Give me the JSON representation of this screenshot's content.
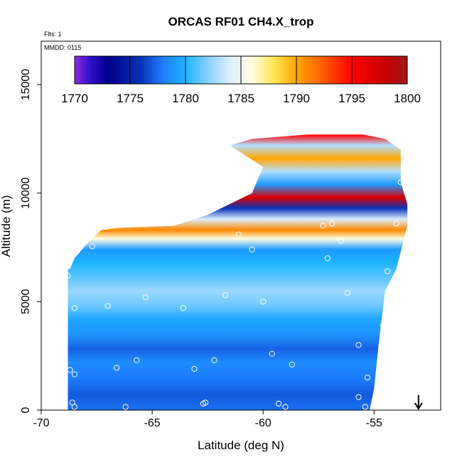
{
  "chart_data": {
    "type": "heatmap",
    "title": "ORCAS RF01 CH4.X_trop",
    "xlabel": "Latitude (deg N)",
    "ylabel": "Altitude (m)",
    "xlim": [
      -70,
      -52
    ],
    "ylim": [
      0,
      17000
    ],
    "xticks": [
      -70,
      -65,
      -60,
      -55
    ],
    "yticks": [
      0,
      5000,
      10000,
      15000
    ],
    "notes": [
      "Flts: 1",
      "MMDD: 0115"
    ],
    "colorbar": {
      "min": 1770,
      "max": 1800,
      "ticks": [
        1770,
        1775,
        1780,
        1785,
        1790,
        1795,
        1800
      ],
      "stops": [
        {
          "v": 1770,
          "color": "#8c2be2"
        },
        {
          "v": 1771.5,
          "color": "#2a0fc8"
        },
        {
          "v": 1773,
          "color": "#00008b"
        },
        {
          "v": 1776,
          "color": "#0a33b8"
        },
        {
          "v": 1778,
          "color": "#1e7fff"
        },
        {
          "v": 1780,
          "color": "#1cb4ff"
        },
        {
          "v": 1782,
          "color": "#87d0ff"
        },
        {
          "v": 1784,
          "color": "#dcefff"
        },
        {
          "v": 1786,
          "color": "#fffde0"
        },
        {
          "v": 1788,
          "color": "#ffe650"
        },
        {
          "v": 1790,
          "color": "#ffa500"
        },
        {
          "v": 1792,
          "color": "#ff6a00"
        },
        {
          "v": 1795,
          "color": "#ff0000"
        },
        {
          "v": 1798,
          "color": "#c80000"
        },
        {
          "v": 1800,
          "color": "#a01818"
        }
      ]
    },
    "curtain": {
      "upper_boundary": [
        {
          "x": -68.7,
          "y": 6500
        },
        {
          "x": -68.5,
          "y": 7000
        },
        {
          "x": -68.0,
          "y": 7600
        },
        {
          "x": -67.3,
          "y": 8300
        },
        {
          "x": -66.5,
          "y": 8400
        },
        {
          "x": -64.0,
          "y": 8500
        },
        {
          "x": -62.5,
          "y": 9000
        },
        {
          "x": -60.5,
          "y": 10000
        },
        {
          "x": -60.0,
          "y": 11200
        },
        {
          "x": -61.5,
          "y": 12200
        },
        {
          "x": -60.5,
          "y": 12500
        },
        {
          "x": -58.0,
          "y": 12700
        },
        {
          "x": -55.5,
          "y": 12700
        },
        {
          "x": -54.5,
          "y": 12500
        },
        {
          "x": -53.8,
          "y": 12000
        },
        {
          "x": -53.8,
          "y": 10500
        },
        {
          "x": -53.5,
          "y": 9500
        },
        {
          "x": -53.5,
          "y": 8500
        },
        {
          "x": -54.0,
          "y": 6500
        },
        {
          "x": -54.5,
          "y": 5500
        },
        {
          "x": -54.8,
          "y": 3000
        },
        {
          "x": -55.0,
          "y": 1000
        },
        {
          "x": -55.2,
          "y": 0
        }
      ],
      "bottom": 0,
      "left_lat": -68.8,
      "bands": [
        {
          "alt": 200,
          "value": 1777.5
        },
        {
          "alt": 700,
          "value": 1777
        },
        {
          "alt": 1300,
          "value": 1777.8
        },
        {
          "alt": 2200,
          "value": 1778.5
        },
        {
          "alt": 2800,
          "value": 1777.2
        },
        {
          "alt": 3500,
          "value": 1778.8
        },
        {
          "alt": 4200,
          "value": 1779.5
        },
        {
          "alt": 4800,
          "value": 1781.5
        },
        {
          "alt": 5500,
          "value": 1782.5
        },
        {
          "alt": 6200,
          "value": 1781
        },
        {
          "alt": 6800,
          "value": 1780
        },
        {
          "alt": 7400,
          "value": 1779
        },
        {
          "alt": 7900,
          "value": 1786
        },
        {
          "alt": 8300,
          "value": 1791
        },
        {
          "alt": 8800,
          "value": 1784
        },
        {
          "alt": 9300,
          "value": 1776
        },
        {
          "alt": 9800,
          "value": 1797
        },
        {
          "alt": 10400,
          "value": 1779
        },
        {
          "alt": 11000,
          "value": 1783
        },
        {
          "alt": 11600,
          "value": 1790
        },
        {
          "alt": 12200,
          "value": 1783
        },
        {
          "alt": 12700,
          "value": 1795
        }
      ]
    },
    "samples": [
      {
        "x": -68.8,
        "y": 6200
      },
      {
        "x": -68.4,
        "y": 7300
      },
      {
        "x": -67.7,
        "y": 7550
      },
      {
        "x": -68.5,
        "y": 4700
      },
      {
        "x": -67.0,
        "y": 4800
      },
      {
        "x": -65.3,
        "y": 5200
      },
      {
        "x": -63.6,
        "y": 4700
      },
      {
        "x": -61.7,
        "y": 5300
      },
      {
        "x": -60.0,
        "y": 5000
      },
      {
        "x": -60.5,
        "y": 7400
      },
      {
        "x": -61.1,
        "y": 8100
      },
      {
        "x": -57.3,
        "y": 8500
      },
      {
        "x": -56.9,
        "y": 8600
      },
      {
        "x": -56.5,
        "y": 7800
      },
      {
        "x": -57.1,
        "y": 7000
      },
      {
        "x": -56.2,
        "y": 5400
      },
      {
        "x": -55.7,
        "y": 3000
      },
      {
        "x": -54.6,
        "y": 3900
      },
      {
        "x": -54.4,
        "y": 6400
      },
      {
        "x": -54.0,
        "y": 8600
      },
      {
        "x": -53.8,
        "y": 10500
      },
      {
        "x": -59.6,
        "y": 2600
      },
      {
        "x": -58.7,
        "y": 2100
      },
      {
        "x": -62.2,
        "y": 2300
      },
      {
        "x": -63.1,
        "y": 1900
      },
      {
        "x": -65.7,
        "y": 2300
      },
      {
        "x": -66.6,
        "y": 1950
      },
      {
        "x": -68.7,
        "y": 1850
      },
      {
        "x": -68.5,
        "y": 1650
      },
      {
        "x": -55.3,
        "y": 1500
      },
      {
        "x": -55.7,
        "y": 600
      },
      {
        "x": -62.6,
        "y": 350
      },
      {
        "x": -59.3,
        "y": 300
      },
      {
        "x": -59.0,
        "y": 150
      },
      {
        "x": -66.2,
        "y": 150
      },
      {
        "x": -68.6,
        "y": 350
      },
      {
        "x": -68.5,
        "y": 150
      },
      {
        "x": -55.4,
        "y": 150
      },
      {
        "x": -62.7,
        "y": 300
      }
    ],
    "arrow_lat": -53
  }
}
